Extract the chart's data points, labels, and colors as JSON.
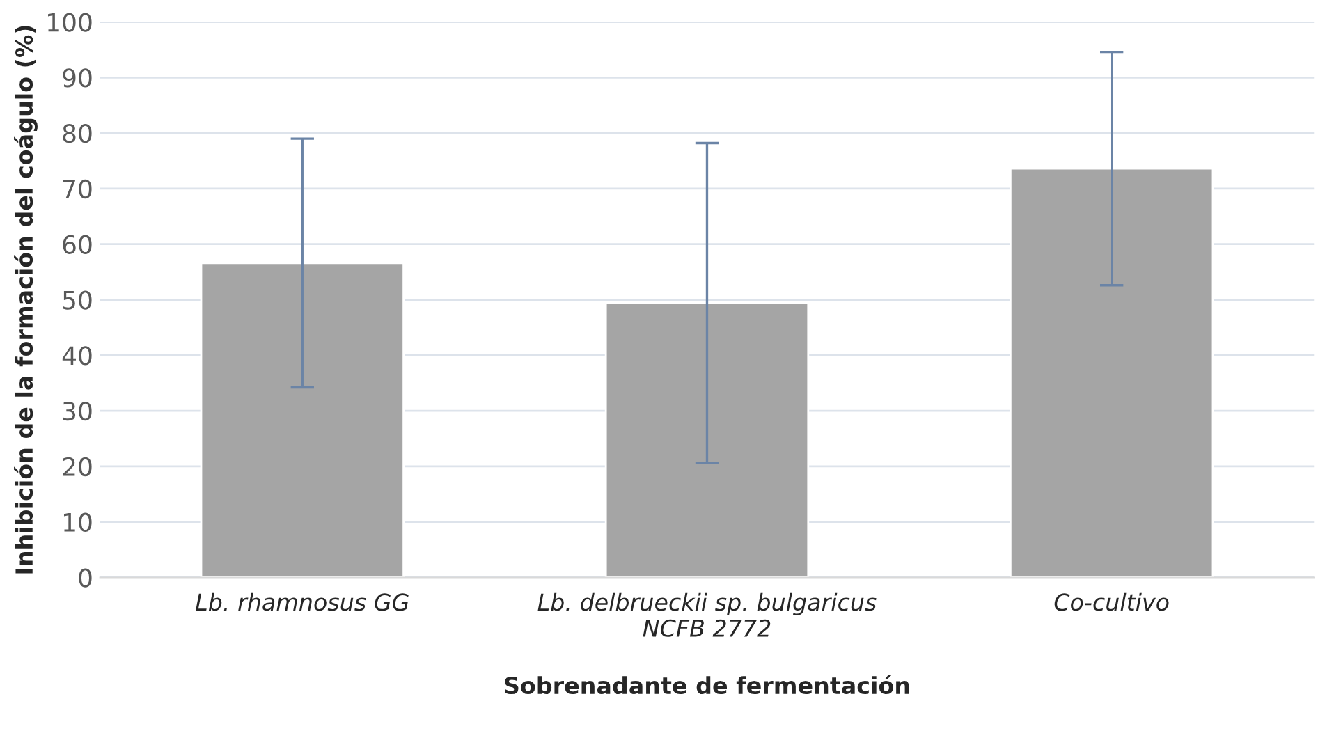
{
  "chart_data": {
    "type": "bar",
    "xlabel": "Sobrenadante de fermentación",
    "ylabel": "Inhibición de la formación del coágulo (%)",
    "categories": [
      "Lb. rhamnosus GG",
      "Lb. delbrueckii sp. bulgaricus\nNCFB 2772",
      "Co-cultivo"
    ],
    "values": [
      56.6,
      49.4,
      73.6
    ],
    "errors": [
      22.4,
      28.8,
      21.0
    ],
    "color": "#a5a5a5",
    "ylim": [
      0,
      100
    ],
    "yticks": [
      0,
      10,
      20,
      30,
      40,
      50,
      60,
      70,
      80,
      90,
      100
    ],
    "grid": "y"
  }
}
